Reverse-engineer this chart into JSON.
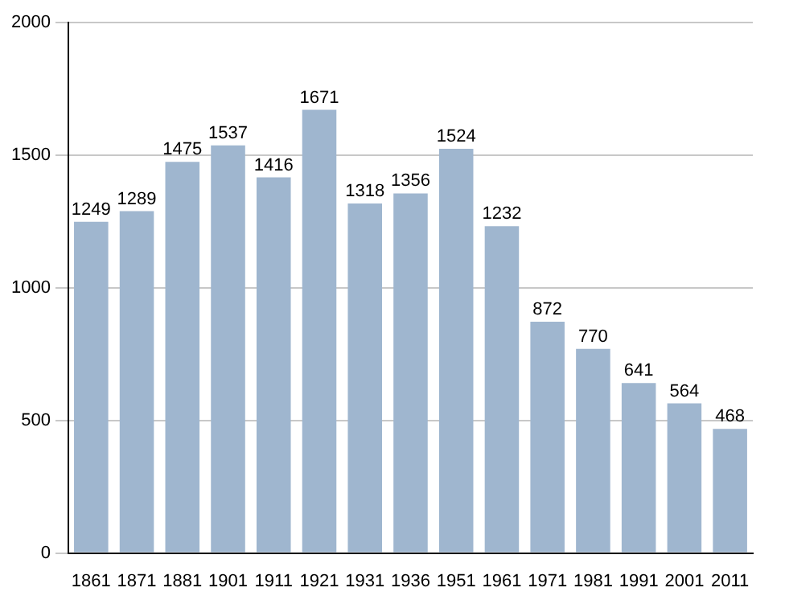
{
  "chart_data": {
    "type": "bar",
    "categories": [
      "1861",
      "1871",
      "1881",
      "1901",
      "1911",
      "1921",
      "1931",
      "1936",
      "1951",
      "1961",
      "1971",
      "1981",
      "1991",
      "2001",
      "2011"
    ],
    "values": [
      1249,
      1289,
      1475,
      1537,
      1416,
      1671,
      1318,
      1356,
      1524,
      1232,
      872,
      770,
      641,
      564,
      468
    ],
    "color": "#9fb6cf",
    "ylim": [
      0,
      2000
    ],
    "yticks": [
      0,
      500,
      1000,
      1500,
      2000
    ],
    "grid": "y",
    "data_labels": true,
    "legend": false
  }
}
